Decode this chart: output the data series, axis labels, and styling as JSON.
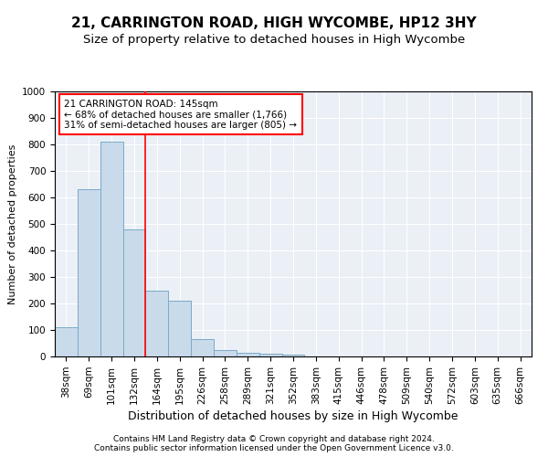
{
  "title_line1": "21, CARRINGTON ROAD, HIGH WYCOMBE, HP12 3HY",
  "title_line2": "Size of property relative to detached houses in High Wycombe",
  "xlabel": "Distribution of detached houses by size in High Wycombe",
  "ylabel": "Number of detached properties",
  "categories": [
    "38sqm",
    "69sqm",
    "101sqm",
    "132sqm",
    "164sqm",
    "195sqm",
    "226sqm",
    "258sqm",
    "289sqm",
    "321sqm",
    "352sqm",
    "383sqm",
    "415sqm",
    "446sqm",
    "478sqm",
    "509sqm",
    "540sqm",
    "572sqm",
    "603sqm",
    "635sqm",
    "666sqm"
  ],
  "values": [
    110,
    630,
    810,
    480,
    250,
    210,
    65,
    25,
    15,
    10,
    8,
    0,
    0,
    0,
    0,
    0,
    0,
    0,
    0,
    0,
    0
  ],
  "bar_color": "#c9daea",
  "bar_edge_color": "#7aaac8",
  "vline_color": "red",
  "vline_x": 3.5,
  "annotation_text": "21 CARRINGTON ROAD: 145sqm\n← 68% of detached houses are smaller (1,766)\n31% of semi-detached houses are larger (805) →",
  "annotation_box_color": "white",
  "annotation_box_edge": "red",
  "ylim": [
    0,
    1000
  ],
  "yticks": [
    0,
    100,
    200,
    300,
    400,
    500,
    600,
    700,
    800,
    900,
    1000
  ],
  "background_color": "#eaf0f6",
  "grid_color": "white",
  "title1_fontsize": 11,
  "title2_fontsize": 9.5,
  "xlabel_fontsize": 9,
  "ylabel_fontsize": 8,
  "annot_fontsize": 7.5,
  "tick_fontsize": 7.5,
  "footer_fontsize": 6.5,
  "footer_line1": "Contains HM Land Registry data © Crown copyright and database right 2024.",
  "footer_line2": "Contains public sector information licensed under the Open Government Licence v3.0."
}
